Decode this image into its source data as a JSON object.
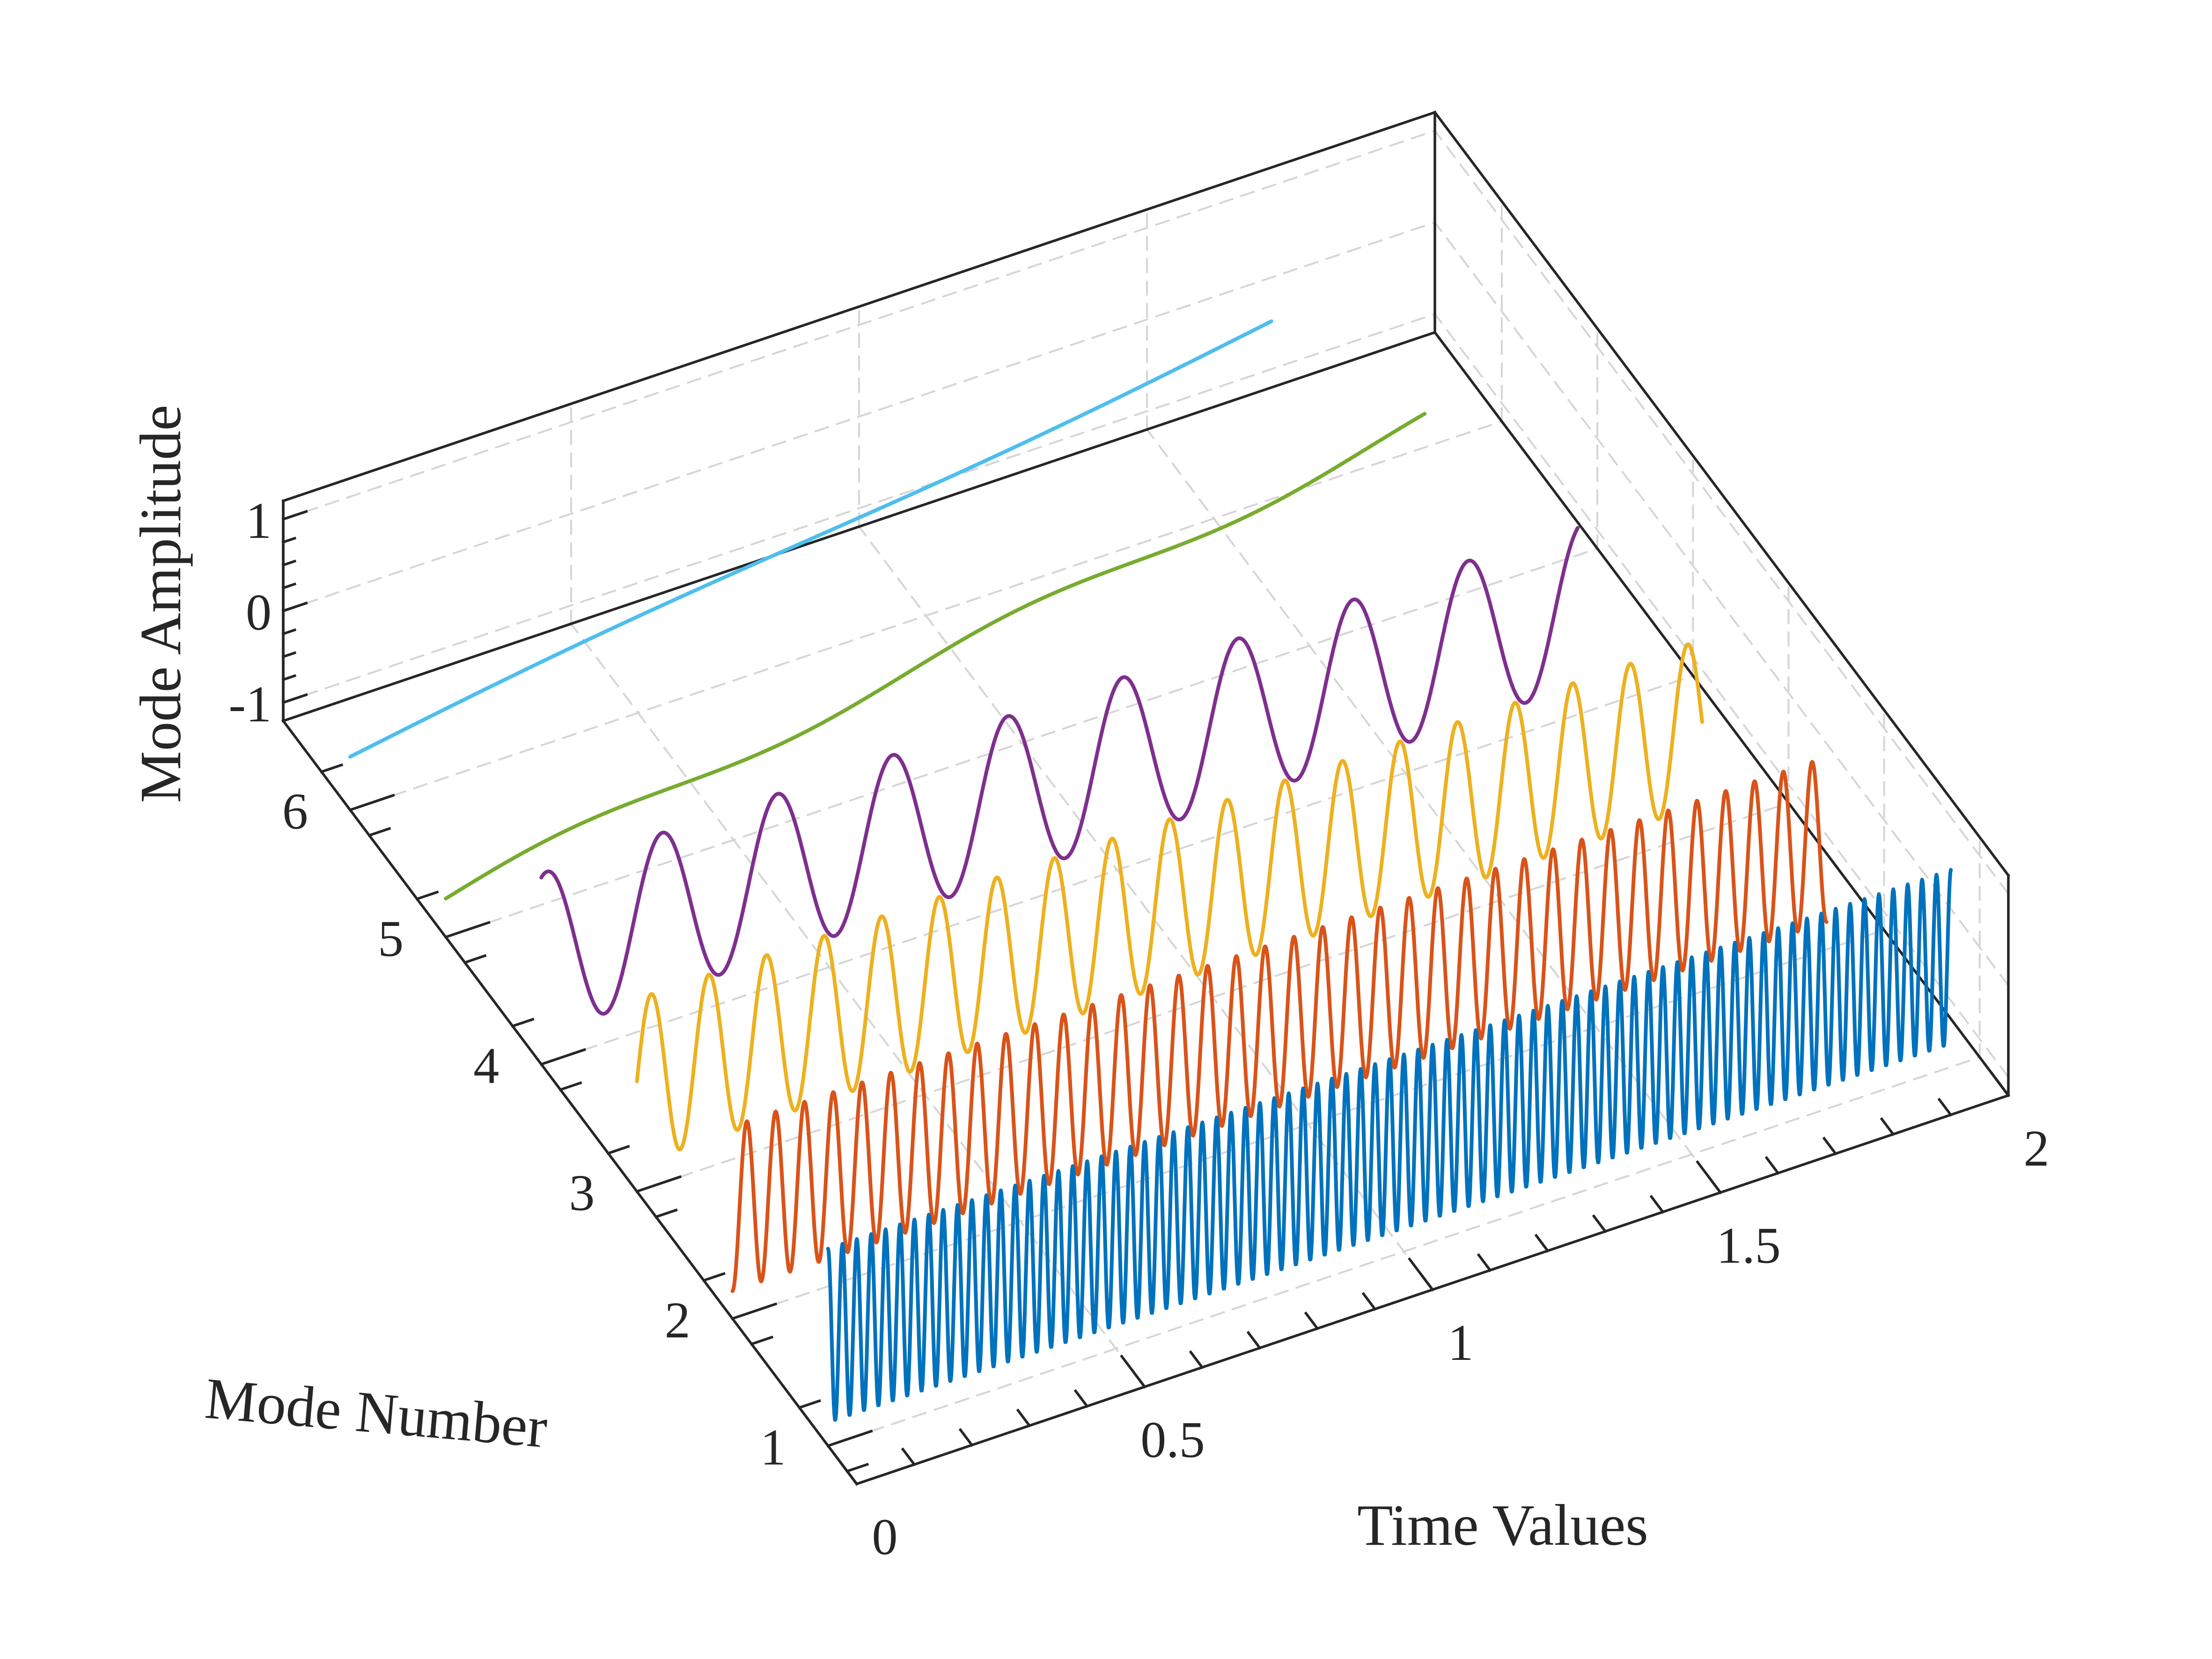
{
  "chart_data": {
    "type": "line",
    "projection": "3d-waterfall",
    "title": "",
    "xlabel": "Time Values",
    "ylabel": "Mode Number",
    "zlabel": "Mode Amplitude",
    "xlim": [
      0,
      2
    ],
    "ylim": [
      0.7,
      6.7
    ],
    "zlim": [
      -1.2,
      1.2
    ],
    "x_ticks": [
      0,
      0.5,
      1,
      1.5,
      2
    ],
    "x_tick_labels": [
      "0",
      "0.5",
      "1",
      "1.5",
      "2"
    ],
    "y_ticks": [
      1,
      2,
      3,
      4,
      5,
      6
    ],
    "y_tick_labels": [
      "1",
      "2",
      "3",
      "4",
      "5",
      "6"
    ],
    "z_ticks": [
      -1,
      0,
      1
    ],
    "z_tick_labels": [
      "-1",
      "0",
      "1"
    ],
    "grid": true,
    "box": true,
    "sample_interval": 0.001,
    "series": [
      {
        "name": "Mode 1",
        "mode": 1,
        "color": "#0072BD",
        "x_range": [
          0,
          1.95
        ],
        "amplitude": 0.95,
        "frequency_hz": 40,
        "phase_cycles": 0.25,
        "offset": 0,
        "drift_slope": 0
      },
      {
        "name": "Mode 2",
        "mode": 2,
        "color": "#D95319",
        "x_range": [
          0,
          1.9
        ],
        "amplitude": 0.9,
        "frequency_hz": 20,
        "phase_cycles": -0.25,
        "offset": 0,
        "drift_slope": 0
      },
      {
        "name": "Mode 3",
        "mode": 3,
        "color": "#EDB120",
        "x_range": [
          0,
          1.85
        ],
        "amplitude": 0.9,
        "frequency_hz": 10,
        "phase_cycles": 0,
        "offset": 0,
        "drift_slope": 0
      },
      {
        "name": "Mode 4",
        "mode": 4,
        "color": "#7E2F8E",
        "x_range": [
          0,
          1.8
        ],
        "amplitude": 0.88,
        "frequency_hz": 5,
        "phase_cycles": 0.2,
        "offset": 0,
        "drift_slope": 0
      },
      {
        "name": "Mode 5",
        "mode": 5,
        "color": "#77AC30",
        "x_range": [
          0,
          1.7
        ],
        "amplitude": 0.1,
        "frequency_hz": 1.25,
        "phase_cycles": 0,
        "offset": -0.78,
        "drift_slope": 0.95
      },
      {
        "name": "Mode 6",
        "mode": 6,
        "color": "#4DBEEE",
        "x_range": [
          0,
          1.6
        ],
        "amplitude": 0.05,
        "frequency_hz": 0.625,
        "phase_cycles": 0,
        "offset": -0.62,
        "drift_slope": 0.85
      }
    ]
  }
}
